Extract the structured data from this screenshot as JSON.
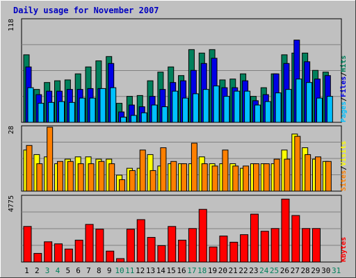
{
  "title": "Daily usage for November 2007",
  "colors": {
    "background": "#c0c0c0",
    "panel": "#c0c0c0",
    "grid": "#808080",
    "title": "#0000c0",
    "hits": "#00805c",
    "files": "#0000e6",
    "pages": "#00c0ff",
    "visits": "#ffff00",
    "sites": "#ff8000",
    "kbytes": "#ff0000",
    "weekend_label": "#00805c",
    "weekday_label": "#000000"
  },
  "chart_data": [
    {
      "type": "bar",
      "name": "hits-files-pages",
      "ymax_label": "118",
      "ylim": [
        0,
        118
      ],
      "grid_lines": 3,
      "categories": [
        "1",
        "2",
        "3",
        "4",
        "5",
        "6",
        "7",
        "8",
        "9",
        "10",
        "11",
        "12",
        "13",
        "14",
        "15",
        "16",
        "17",
        "18",
        "19",
        "20",
        "21",
        "22",
        "23",
        "24",
        "25",
        "26",
        "27",
        "28",
        "29",
        "30",
        "31"
      ],
      "series": [
        {
          "name": "Hits",
          "color_key": "hits",
          "values": [
            78,
            38,
            46,
            48,
            49,
            56,
            64,
            71,
            76,
            22,
            30,
            31,
            48,
            58,
            64,
            54,
            84,
            80,
            84,
            49,
            50,
            56,
            30,
            40,
            56,
            78,
            80,
            80,
            60,
            58,
            0
          ]
        },
        {
          "name": "Files",
          "color_key": "files",
          "values": [
            64,
            32,
            36,
            36,
            38,
            38,
            39,
            39,
            68,
            12,
            20,
            18,
            30,
            38,
            46,
            48,
            60,
            68,
            74,
            40,
            40,
            48,
            25,
            32,
            56,
            68,
            95,
            70,
            50,
            54,
            0
          ]
        },
        {
          "name": "Pages",
          "color_key": "pages",
          "values": [
            40,
            22,
            23,
            24,
            23,
            28,
            28,
            39,
            40,
            6,
            8,
            11,
            20,
            18,
            36,
            28,
            33,
            38,
            42,
            30,
            36,
            36,
            20,
            24,
            34,
            38,
            50,
            46,
            28,
            30,
            0
          ]
        }
      ],
      "right_labels": [
        "Pages",
        "/",
        "Files",
        "/",
        "Hits"
      ]
    },
    {
      "type": "bar",
      "name": "visits-sites",
      "ymax_label": "28",
      "ylim": [
        0,
        28
      ],
      "grid_lines": 3,
      "categories": [
        "1",
        "2",
        "3",
        "4",
        "5",
        "6",
        "7",
        "8",
        "9",
        "10",
        "11",
        "12",
        "13",
        "14",
        "15",
        "16",
        "17",
        "18",
        "19",
        "20",
        "21",
        "22",
        "23",
        "24",
        "25",
        "26",
        "27",
        "28",
        "29",
        "30",
        "31"
      ],
      "series": [
        {
          "name": "Visits",
          "color_key": "visits",
          "values": [
            18,
            16,
            15,
            12,
            14,
            15,
            15,
            14,
            14,
            7,
            10,
            10,
            16,
            11,
            12,
            12,
            12,
            15,
            12,
            12,
            12,
            10,
            12,
            12,
            12,
            18,
            25,
            19,
            14,
            13,
            0
          ]
        },
        {
          "name": "Sites",
          "color_key": "sites",
          "values": [
            20,
            12,
            28,
            13,
            13,
            12,
            12,
            13,
            12,
            5,
            9,
            18,
            9,
            19,
            13,
            12,
            21,
            12,
            11,
            18,
            11,
            11,
            12,
            12,
            14,
            14,
            24,
            16,
            15,
            13,
            0
          ]
        }
      ],
      "right_labels": [
        "Sites",
        "/",
        "Visits"
      ]
    },
    {
      "type": "bar",
      "name": "kbytes",
      "ymax_label": "4775",
      "ylim": [
        0,
        4775
      ],
      "grid_lines": 3,
      "categories": [
        "1",
        "2",
        "3",
        "4",
        "5",
        "6",
        "7",
        "8",
        "9",
        "10",
        "11",
        "12",
        "13",
        "14",
        "15",
        "16",
        "17",
        "18",
        "19",
        "20",
        "21",
        "22",
        "23",
        "24",
        "25",
        "26",
        "27",
        "28",
        "29",
        "30",
        "31"
      ],
      "series": [
        {
          "name": "KBytes",
          "color_key": "kbytes",
          "values": [
            2600,
            630,
            1480,
            1330,
            950,
            1600,
            2750,
            2400,
            800,
            250,
            2400,
            3100,
            1800,
            1200,
            2600,
            1600,
            2450,
            3850,
            1100,
            1900,
            1450,
            2000,
            3500,
            2250,
            2450,
            4600,
            3400,
            2450,
            2450,
            0,
            0
          ]
        }
      ],
      "right_labels": [
        "KBytes"
      ]
    }
  ],
  "x_axis": {
    "labels": [
      "1",
      "2",
      "3",
      "4",
      "5",
      "6",
      "7",
      "8",
      "9",
      "10",
      "11",
      "12",
      "13",
      "14",
      "15",
      "16",
      "17",
      "18",
      "19",
      "20",
      "21",
      "22",
      "23",
      "24",
      "25",
      "26",
      "27",
      "28",
      "29",
      "30",
      "31"
    ],
    "weekend": [
      false,
      false,
      true,
      true,
      false,
      false,
      false,
      false,
      false,
      true,
      true,
      false,
      false,
      false,
      false,
      false,
      true,
      true,
      false,
      false,
      false,
      false,
      false,
      true,
      true,
      false,
      false,
      false,
      false,
      false,
      true
    ]
  }
}
